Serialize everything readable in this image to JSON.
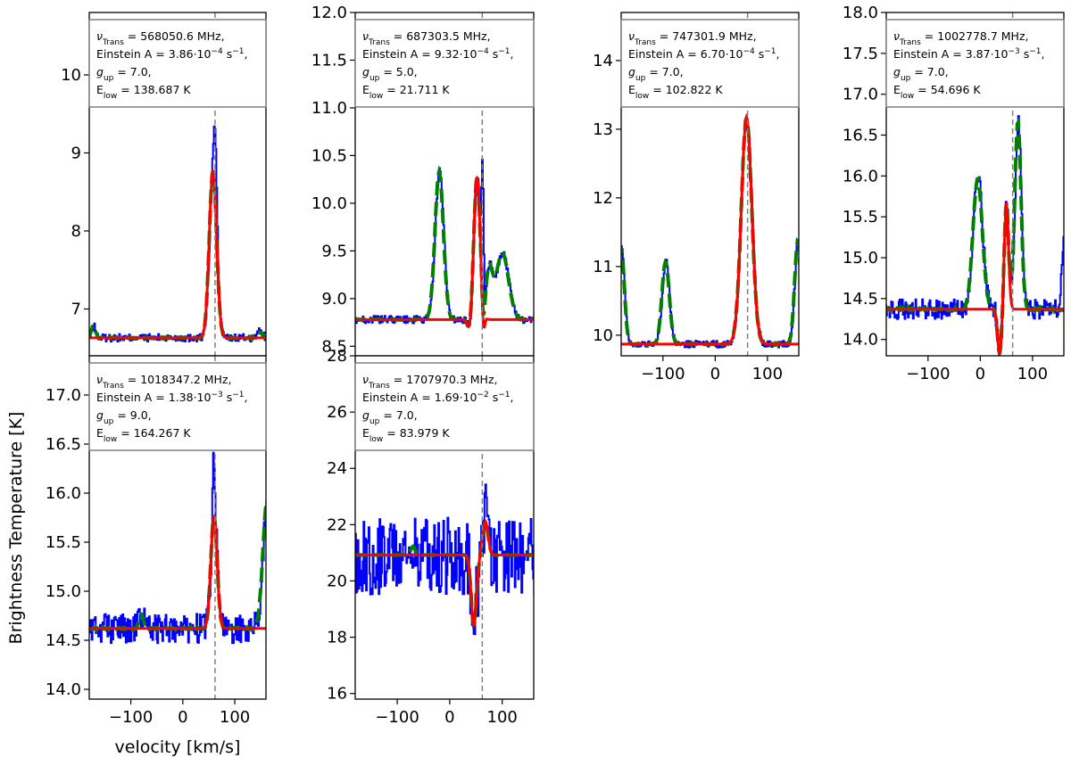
{
  "figure": {
    "ylabel": "Brightness Temperature [K]",
    "xlabel": "velocity [km/s]",
    "colors": {
      "observed": "#0000ff",
      "model_full": "#007f00",
      "model_component": "#ff0000",
      "vline": "#808080"
    },
    "legend_lines": {
      "freq_prefix": "Trans",
      "freq_unit": "MHz,",
      "einstein_prefix": "Einstein A = ",
      "einstein_unit": " s",
      "einstein_exp": "−1",
      "einstein_end": ",",
      "gup_sub": "up",
      "elow_prefix": "E",
      "elow_sub": "low",
      "elow_unit": "K"
    }
  },
  "chart_data": [
    {
      "type": "line",
      "id": "p1",
      "xlim": [
        -180,
        160
      ],
      "ylim": [
        6.4,
        10.8
      ],
      "yticks": [
        7,
        8,
        9,
        10
      ],
      "ytick_labels": [
        "7",
        "8",
        "9",
        "10"
      ],
      "xticks": [
        -100,
        0,
        100
      ],
      "xtick_labels": [
        "−100",
        "0",
        "100"
      ],
      "show_xtick_labels": false,
      "vline": 62,
      "freq": "568050.6",
      "einstein_mant": "3.86",
      "einstein_exp": "−4",
      "gup": "7.0",
      "elow": "138.687",
      "legend_placement": "top",
      "baseline": 6.63,
      "noise": 0.05,
      "fit_noise": 0.05,
      "peaks": [
        {
          "center": 58,
          "amp": 2.15,
          "width": 7,
          "in_fit": true
        }
      ],
      "obs_extra": [
        {
          "center": 62,
          "amp": 0.8,
          "width": 3
        }
      ],
      "green_extra": [
        {
          "center": -172,
          "amp": 0.15,
          "width": 4
        },
        {
          "center": 148,
          "amp": 0.08,
          "width": 5
        }
      ]
    },
    {
      "type": "line",
      "id": "p2",
      "xlim": [
        -180,
        160
      ],
      "ylim": [
        8.4,
        12.0
      ],
      "yticks": [
        8.5,
        9.0,
        9.5,
        10.0,
        10.5,
        11.0,
        11.5,
        12.0
      ],
      "ytick_labels": [
        "8.5",
        "9.0",
        "9.5",
        "10.0",
        "10.5",
        "11.0",
        "11.5",
        "12.0"
      ],
      "xticks": [
        -100,
        0,
        100
      ],
      "xtick_labels": [
        "−100",
        "0",
        "100"
      ],
      "show_xtick_labels": false,
      "vline": 62,
      "freq": "687303.5",
      "einstein_mant": "9.32",
      "einstein_exp": "−4",
      "gup": "5.0",
      "elow": "21.711",
      "legend_placement": "top",
      "baseline": 8.78,
      "noise": 0.04,
      "fit_noise": 0.03,
      "peaks": [
        {
          "center": -20,
          "amp": 1.55,
          "width": 8,
          "in_fit": false
        },
        {
          "center": 52,
          "amp": 1.5,
          "width": 6,
          "in_fit": true
        },
        {
          "center": 100,
          "amp": 0.7,
          "width": 12,
          "in_fit": false
        },
        {
          "center": 75,
          "amp": 0.5,
          "width": 6,
          "in_fit": false
        }
      ],
      "absorption": [
        {
          "center": 38,
          "amp": -0.13,
          "width": 4
        },
        {
          "center": 64,
          "amp": -0.25,
          "width": 2.5
        }
      ],
      "obs_extra": [
        {
          "center": 62,
          "amp": 1.4,
          "width": 2
        }
      ],
      "green_extra": []
    },
    {
      "type": "line",
      "id": "p3",
      "xlim": [
        -180,
        160
      ],
      "ylim": [
        9.7,
        14.7
      ],
      "yticks": [
        10,
        11,
        12,
        13,
        14
      ],
      "ytick_labels": [
        "10",
        "11",
        "12",
        "13",
        "14"
      ],
      "xticks": [
        -100,
        0,
        100
      ],
      "xtick_labels": [
        "−100",
        "0",
        "100"
      ],
      "show_xtick_labels": true,
      "vline": 62,
      "freq": "747301.9",
      "einstein_mant": "6.70",
      "einstein_exp": "−4",
      "gup": "7.0",
      "elow": "102.822",
      "legend_placement": "top",
      "baseline": 9.87,
      "noise": 0.05,
      "fit_noise": 0.05,
      "peaks": [
        {
          "center": 60,
          "amp": 3.3,
          "width": 10,
          "in_fit": true
        },
        {
          "center": -95,
          "amp": 1.2,
          "width": 7,
          "in_fit": false
        },
        {
          "center": -180,
          "amp": 1.4,
          "width": 6,
          "in_fit": false
        },
        {
          "center": 158,
          "amp": 1.5,
          "width": 6,
          "in_fit": false
        }
      ],
      "absorption": [],
      "obs_extra": [],
      "green_extra": []
    },
    {
      "type": "line",
      "id": "p4",
      "xlim": [
        -180,
        160
      ],
      "ylim": [
        13.8,
        18.0
      ],
      "yticks": [
        14.0,
        14.5,
        15.0,
        15.5,
        16.0,
        16.5,
        17.0,
        17.5,
        18.0
      ],
      "ytick_labels": [
        "14.0",
        "14.5",
        "15.0",
        "15.5",
        "16.0",
        "16.5",
        "17.0",
        "17.5",
        "18.0"
      ],
      "xticks": [
        -100,
        0,
        100
      ],
      "xtick_labels": [
        "−100",
        "0",
        "100"
      ],
      "show_xtick_labels": true,
      "vline": 62,
      "freq": "1002778.7",
      "einstein_mant": "3.87",
      "einstein_exp": "−3",
      "gup": "7.0",
      "elow": "54.696",
      "legend_placement": "top",
      "baseline": 14.37,
      "noise": 0.12,
      "fit_noise": 0.08,
      "peaks": [
        {
          "center": -5,
          "amp": 1.6,
          "width": 9,
          "in_fit": false
        },
        {
          "center": 50,
          "amp": 1.3,
          "width": 4,
          "in_fit": true
        },
        {
          "center": 72,
          "amp": 2.3,
          "width": 6,
          "in_fit": false
        }
      ],
      "absorption": [
        {
          "center": 37,
          "amp": -0.55,
          "width": 4
        }
      ],
      "obs_extra": [
        {
          "center": 160,
          "amp": 0.8,
          "width": 5
        }
      ],
      "green_extra": []
    },
    {
      "type": "line",
      "id": "p5",
      "xlim": [
        -180,
        160
      ],
      "ylim": [
        13.9,
        17.4
      ],
      "yticks": [
        14.0,
        14.5,
        15.0,
        15.5,
        16.0,
        16.5,
        17.0
      ],
      "ytick_labels": [
        "14.0",
        "14.5",
        "15.0",
        "15.5",
        "16.0",
        "16.5",
        "17.0"
      ],
      "xticks": [
        -100,
        0,
        100
      ],
      "xtick_labels": [
        "−100",
        "0",
        "100"
      ],
      "show_xtick_labels": true,
      "vline": 62,
      "freq": "1018347.2",
      "einstein_mant": "1.38",
      "einstein_exp": "−3",
      "gup": "9.0",
      "elow": "164.267",
      "legend_placement": "top",
      "baseline": 14.62,
      "noise": 0.15,
      "fit_noise": 0.05,
      "peaks": [
        {
          "center": 60,
          "amp": 1.15,
          "width": 6,
          "in_fit": true
        },
        {
          "center": 162,
          "amp": 1.3,
          "width": 8,
          "in_fit": false
        }
      ],
      "absorption": [],
      "obs_extra": [
        {
          "center": 58,
          "amp": 0.6,
          "width": 2
        }
      ],
      "green_extra": [
        {
          "center": -80,
          "amp": 0.15,
          "width": 4
        }
      ]
    },
    {
      "type": "line",
      "id": "p6",
      "xlim": [
        -180,
        160
      ],
      "ylim": [
        15.8,
        28.0
      ],
      "yticks": [
        16,
        18,
        20,
        22,
        24,
        26,
        28
      ],
      "ytick_labels": [
        "16",
        "18",
        "20",
        "22",
        "24",
        "26",
        "28"
      ],
      "xticks": [
        -100,
        0,
        100
      ],
      "xtick_labels": [
        "−100",
        "0",
        "100"
      ],
      "show_xtick_labels": true,
      "vline": 62,
      "freq": "1707970.3",
      "einstein_mant": "1.69",
      "einstein_exp": "−2",
      "gup": "7.0",
      "elow": "83.979",
      "legend_placement": "top",
      "baseline": 20.92,
      "noise": 1.4,
      "fit_noise": 0.06,
      "peaks": [
        {
          "center": 68,
          "amp": 1.2,
          "width": 5,
          "in_fit": true
        }
      ],
      "absorption": [
        {
          "center": 46,
          "amp": -2.5,
          "width": 5
        }
      ],
      "obs_extra": [],
      "green_extra": [
        {
          "center": -70,
          "amp": 0.3,
          "width": 4
        }
      ]
    }
  ]
}
